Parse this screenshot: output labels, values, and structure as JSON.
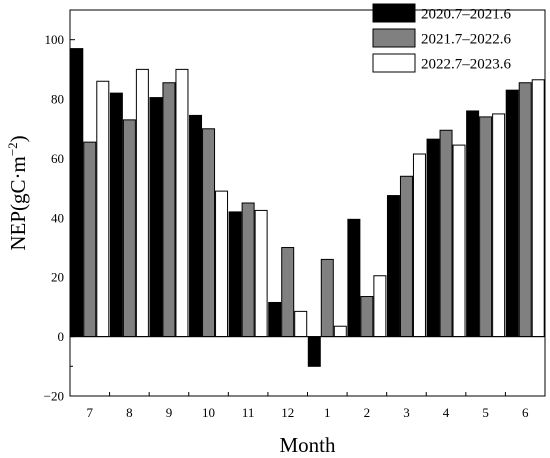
{
  "chart_data": {
    "type": "bar",
    "title": "",
    "xlabel": "Month",
    "ylabel": "NEP(gC·m",
    "ylabel_sup": "−2",
    "ylabel_close": ")",
    "categories": [
      "7",
      "8",
      "9",
      "10",
      "11",
      "12",
      "1",
      "2",
      "3",
      "4",
      "5",
      "6"
    ],
    "ylim": [
      -20,
      110
    ],
    "yticks": [
      -20,
      0,
      20,
      40,
      60,
      80,
      100
    ],
    "grid": false,
    "legend_position": "top-right",
    "series": [
      {
        "name": "2020.7–2021.6",
        "color": "#000000",
        "values": [
          97,
          82,
          80.5,
          74.5,
          42,
          11.5,
          -10,
          39.5,
          47.5,
          66.5,
          76,
          83
        ]
      },
      {
        "name": "2021.7–2022.6",
        "color": "#808080",
        "values": [
          65.5,
          73,
          85.5,
          70,
          45,
          30,
          26,
          13.5,
          54,
          69.5,
          74,
          85.5
        ]
      },
      {
        "name": "2022.7–2023.6",
        "color": "#ffffff",
        "values": [
          86,
          90,
          90,
          49,
          42.5,
          8.5,
          3.5,
          20.5,
          61.5,
          64.5,
          75,
          86.5
        ]
      }
    ]
  }
}
